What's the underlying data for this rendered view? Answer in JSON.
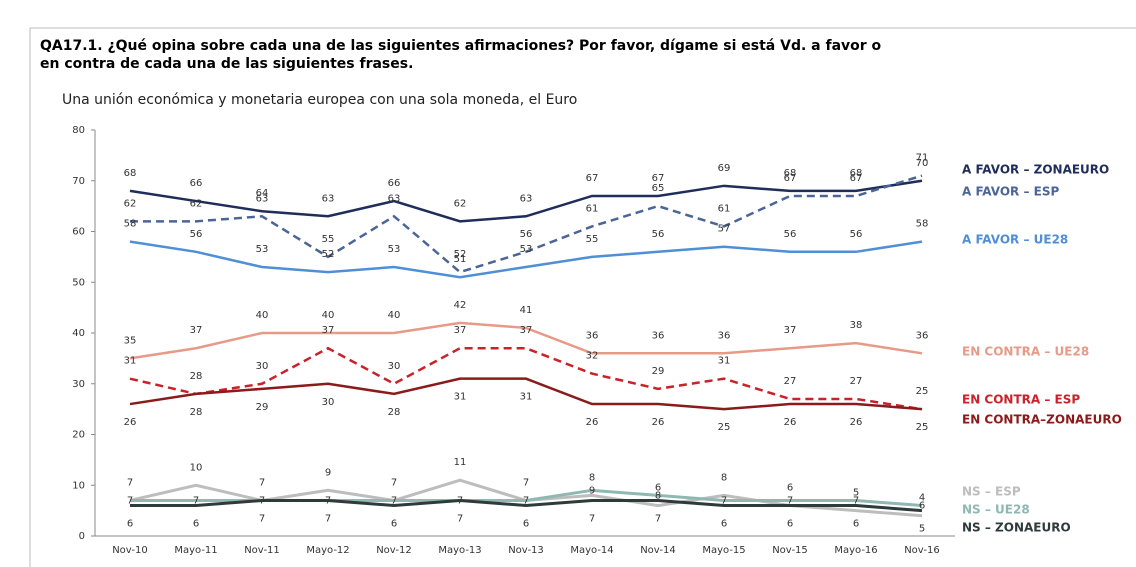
{
  "chart_data": {
    "type": "line",
    "title": "QA17.1. ¿Qué opina sobre cada una de las siguientes afirmaciones? Por favor, dígame si está Vd. a favor o",
    "title_line2": "en contra de cada una de las siguientes frases.",
    "subtitle": "Una unión económica y monetaria europea con una sola moneda, el Euro",
    "categories": [
      "Nov-10",
      "Mayo-11",
      "Nov-11",
      "Mayo-12",
      "Nov-12",
      "Mayo-13",
      "Nov-13",
      "Mayo-14",
      "Nov-14",
      "Mayo-15",
      "Nov-15",
      "Mayo-16",
      "Nov-16"
    ],
    "ylim": [
      0,
      80
    ],
    "yticks": [
      0,
      10,
      20,
      30,
      40,
      50,
      60,
      70,
      80
    ],
    "series": [
      {
        "name": "A FAVOR – ZONAEURO",
        "color": "#1f2d5a",
        "dashed": false,
        "values": [
          68,
          66,
          64,
          63,
          66,
          62,
          63,
          67,
          67,
          69,
          68,
          68,
          70
        ]
      },
      {
        "name": "A FAVOR – ESP",
        "color": "#4a6596",
        "dashed": true,
        "values": [
          62,
          62,
          63,
          55,
          63,
          52,
          56,
          61,
          65,
          61,
          67,
          67,
          71
        ]
      },
      {
        "name": "A FAVOR – UE28",
        "color": "#4f8fd6",
        "dashed": false,
        "values": [
          58,
          56,
          53,
          52,
          53,
          51,
          53,
          55,
          56,
          57,
          56,
          56,
          58
        ]
      },
      {
        "name": "EN CONTRA – UE28",
        "color": "#e79a87",
        "dashed": false,
        "values": [
          35,
          37,
          40,
          40,
          40,
          42,
          41,
          36,
          36,
          36,
          37,
          38,
          36
        ]
      },
      {
        "name": "EN CONTRA – ESP",
        "color": "#c8222b",
        "dashed": true,
        "values": [
          31,
          28,
          30,
          37,
          30,
          37,
          37,
          32,
          29,
          31,
          27,
          27,
          25
        ]
      },
      {
        "name": "EN CONTRA–ZONAEURO",
        "color": "#8b1a1a",
        "dashed": false,
        "values": [
          26,
          28,
          29,
          30,
          28,
          31,
          31,
          26,
          26,
          25,
          26,
          26,
          25
        ]
      },
      {
        "name": "NS – ESP",
        "color": "#bdbdbd",
        "dashed": false,
        "values": [
          7,
          10,
          7,
          9,
          7,
          11,
          7,
          8,
          6,
          8,
          6,
          5,
          4
        ]
      },
      {
        "name": "NS – UE28",
        "color": "#8fb8b2",
        "dashed": false,
        "values": [
          7,
          7,
          7,
          7,
          7,
          7,
          7,
          9,
          8,
          7,
          7,
          7,
          6
        ]
      },
      {
        "name": "NS – ZONAEURO",
        "color": "#2f3a3a",
        "dashed": false,
        "values": [
          6,
          6,
          7,
          7,
          6,
          7,
          6,
          7,
          7,
          6,
          6,
          6,
          5
        ]
      }
    ]
  }
}
